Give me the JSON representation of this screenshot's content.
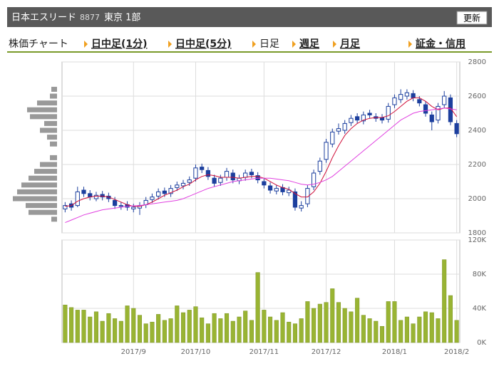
{
  "header": {
    "company": "日本エスリード",
    "code": "8877",
    "market": "東京 1部",
    "button": "更新"
  },
  "tabs": [
    "株価チャート",
    "日中足(1分)",
    "日中足(5分)",
    "日足",
    "週足",
    "月足",
    "証金・信用"
  ],
  "chart_data": [
    {
      "type": "candlestick",
      "categories": [
        null,
        null,
        null,
        null,
        null,
        null,
        null,
        null,
        null,
        null,
        null,
        null,
        null,
        null,
        null,
        null,
        null,
        null,
        null,
        null,
        null,
        null,
        null,
        null,
        null,
        null,
        null,
        null,
        null,
        null,
        null,
        null,
        null,
        null,
        null,
        null,
        null,
        null,
        null,
        null,
        null,
        null,
        null,
        null,
        null,
        null,
        null,
        null,
        null,
        null,
        null,
        null,
        null,
        null,
        null,
        null,
        null,
        null,
        null,
        null,
        null,
        null,
        null,
        null
      ],
      "open": [
        1940,
        1970,
        1960,
        2050,
        2030,
        2000,
        2025,
        2015,
        1990,
        1955,
        1965,
        1940,
        1945,
        1965,
        1995,
        2015,
        2045,
        2030,
        2065,
        2075,
        2095,
        2120,
        2185,
        2165,
        2120,
        2095,
        2125,
        2150,
        2105,
        2125,
        2155,
        2135,
        2100,
        2075,
        2045,
        2065,
        2035,
        2040,
        1945,
        1970,
        2070,
        2160,
        2230,
        2320,
        2395,
        2400,
        2445,
        2480,
        2455,
        2500,
        2480,
        2475,
        2465,
        2550,
        2580,
        2600,
        2615,
        2580,
        2550,
        2490,
        2460,
        2550,
        2590,
        2440
      ],
      "high": [
        1980,
        1990,
        2070,
        2070,
        2050,
        2040,
        2045,
        2035,
        2010,
        1980,
        1985,
        1970,
        1980,
        2010,
        2030,
        2060,
        2065,
        2080,
        2100,
        2110,
        2130,
        2200,
        2205,
        2185,
        2140,
        2140,
        2180,
        2170,
        2140,
        2170,
        2175,
        2155,
        2120,
        2095,
        2080,
        2085,
        2070,
        2060,
        1985,
        2080,
        2170,
        2240,
        2350,
        2410,
        2440,
        2460,
        2490,
        2500,
        2510,
        2520,
        2500,
        2495,
        2560,
        2610,
        2640,
        2640,
        2635,
        2600,
        2570,
        2510,
        2560,
        2630,
        2610,
        2460
      ],
      "low": [
        1920,
        1930,
        1950,
        2010,
        1990,
        1985,
        1990,
        1980,
        1940,
        1935,
        1930,
        1920,
        1905,
        1945,
        1975,
        1995,
        2010,
        2010,
        2045,
        2055,
        2075,
        2100,
        2150,
        2110,
        2070,
        2075,
        2105,
        2090,
        2085,
        2105,
        2120,
        2090,
        2060,
        2030,
        2025,
        2020,
        2015,
        1930,
        1925,
        1950,
        2050,
        2140,
        2210,
        2300,
        2375,
        2380,
        2425,
        2440,
        2435,
        2470,
        2450,
        2440,
        2445,
        2530,
        2560,
        2580,
        2570,
        2540,
        2480,
        2400,
        2440,
        2530,
        2430,
        2360
      ],
      "close": [
        1960,
        1950,
        2040,
        2030,
        2010,
        2020,
        2010,
        2000,
        1960,
        1960,
        1950,
        1950,
        1960,
        1990,
        2010,
        2040,
        2030,
        2060,
        2080,
        2090,
        2110,
        2180,
        2170,
        2130,
        2090,
        2120,
        2160,
        2110,
        2120,
        2150,
        2140,
        2110,
        2080,
        2050,
        2060,
        2040,
        2050,
        1950,
        1960,
        2060,
        2150,
        2220,
        2330,
        2390,
        2410,
        2440,
        2470,
        2460,
        2490,
        2490,
        2470,
        2460,
        2540,
        2590,
        2610,
        2620,
        2590,
        2560,
        2500,
        2450,
        2540,
        2600,
        2450,
        2380
      ],
      "up_color": "#ffffff",
      "down_color": "#1c3f9e",
      "moving_averages": [
        {
          "color": "#d0103a",
          "values": [
            1955,
            1960,
            1985,
            2000,
            2010,
            2015,
            2015,
            2010,
            1995,
            1980,
            1965,
            1955,
            1955,
            1965,
            1980,
            2000,
            2020,
            2035,
            2050,
            2070,
            2085,
            2110,
            2130,
            2140,
            2135,
            2125,
            2125,
            2125,
            2120,
            2125,
            2130,
            2130,
            2120,
            2100,
            2080,
            2065,
            2055,
            2030,
            2010,
            2010,
            2040,
            2090,
            2160,
            2240,
            2310,
            2370,
            2410,
            2440,
            2460,
            2470,
            2475,
            2475,
            2485,
            2510,
            2540,
            2570,
            2590,
            2590,
            2570,
            2540,
            2520,
            2530,
            2530,
            2480
          ]
        },
        {
          "color": "#e040e0",
          "values": [
            1860,
            1875,
            1890,
            1905,
            1915,
            1925,
            1935,
            1940,
            1945,
            1950,
            1955,
            1958,
            1960,
            1965,
            1970,
            1975,
            1980,
            1985,
            1990,
            2000,
            2015,
            2030,
            2045,
            2060,
            2070,
            2080,
            2090,
            2100,
            2105,
            2110,
            2115,
            2120,
            2120,
            2120,
            2115,
            2110,
            2105,
            2095,
            2085,
            2080,
            2085,
            2095,
            2110,
            2130,
            2160,
            2190,
            2220,
            2250,
            2280,
            2310,
            2340,
            2370,
            2400,
            2430,
            2460,
            2480,
            2500,
            2510,
            2515,
            2520,
            2525,
            2530,
            2525,
            2520
          ]
        }
      ],
      "ylim": [
        1800,
        2800
      ],
      "yticks": [
        1800,
        2000,
        2200,
        2400,
        2600,
        2800
      ],
      "grid": true,
      "volume_profile": {
        "color": "#999999",
        "prices": [
          2640,
          2600,
          2560,
          2520,
          2480,
          2440,
          2400,
          2360,
          2320,
          2240,
          2200,
          2160,
          2120,
          2080,
          2040,
          2000,
          1960,
          1920,
          1880
        ],
        "values": [
          8,
          10,
          28,
          42,
          38,
          18,
          24,
          14,
          10,
          10,
          24,
          32,
          40,
          50,
          56,
          62,
          44,
          40,
          8
        ]
      }
    },
    {
      "type": "bar",
      "categories": [
        null,
        null,
        null,
        null,
        null,
        null,
        null,
        null,
        null,
        null,
        null,
        null,
        null,
        null,
        null,
        null,
        null,
        null,
        null,
        null,
        null,
        null,
        null,
        null,
        null,
        null,
        null,
        null,
        null,
        null,
        null,
        null,
        null,
        null,
        null,
        null,
        null,
        null,
        null,
        null,
        null,
        null,
        null,
        null,
        null,
        null,
        null,
        null,
        null,
        null,
        null,
        null,
        null,
        null,
        null,
        null,
        null,
        null,
        null,
        null,
        null,
        null,
        null,
        null
      ],
      "values": [
        44000,
        41000,
        38000,
        38000,
        30000,
        36000,
        25000,
        34000,
        28000,
        25000,
        43000,
        40000,
        32000,
        22000,
        24000,
        33000,
        26000,
        28000,
        43000,
        35000,
        38000,
        42000,
        29000,
        22000,
        34000,
        28000,
        34000,
        25000,
        30000,
        37000,
        26000,
        82000,
        38000,
        30000,
        26000,
        35000,
        24000,
        22000,
        28000,
        48000,
        40000,
        45000,
        47000,
        63000,
        47000,
        40000,
        36000,
        52000,
        32000,
        28000,
        25000,
        19000,
        48000,
        48000,
        26000,
        30000,
        22000,
        30000,
        36000,
        35000,
        28000,
        97000,
        55000,
        26000
      ],
      "color": "#99b433",
      "ylim": [
        0,
        120000
      ],
      "yticks": [
        {
          "value": 0,
          "label": "0K"
        },
        {
          "value": 40000,
          "label": "40K"
        },
        {
          "value": 80000,
          "label": "80K"
        },
        {
          "value": 120000,
          "label": "120K"
        }
      ],
      "xticks": [
        {
          "value": 11,
          "label": "2017/9"
        },
        {
          "value": 21,
          "label": "2017/10"
        },
        {
          "value": 32,
          "label": "2017/11"
        },
        {
          "value": 42,
          "label": "2017/12"
        },
        {
          "value": 53,
          "label": "2018/1"
        },
        {
          "value": 63,
          "label": "2018/2"
        }
      ],
      "grid": true
    }
  ]
}
